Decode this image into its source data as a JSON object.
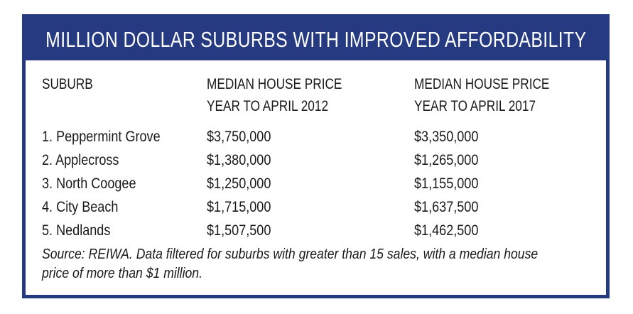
{
  "title": "MILLION DOLLAR SUBURBS WITH IMPROVED AFFORDABILITY",
  "colors": {
    "frame": "#253a80",
    "title_text": "#ffffff",
    "body_text": "#1a1a1a"
  },
  "headers": {
    "suburb": "SUBURB",
    "price_2012": [
      "MEDIAN HOUSE PRICE",
      "YEAR TO APRIL 2012"
    ],
    "price_2017": [
      "MEDIAN HOUSE PRICE",
      "YEAR TO APRIL 2017"
    ]
  },
  "rows": [
    {
      "suburb": "1. Peppermint Grove",
      "price_2012": "$3,750,000",
      "price_2017": "$3,350,000"
    },
    {
      "suburb": "2. Applecross",
      "price_2012": "$1,380,000",
      "price_2017": "$1,265,000"
    },
    {
      "suburb": "3. North Coogee",
      "price_2012": "$1,250,000",
      "price_2017": "$1,155,000"
    },
    {
      "suburb": "4. City Beach",
      "price_2012": "$1,715,000",
      "price_2017": "$1,637,500"
    },
    {
      "suburb": "5. Nedlands",
      "price_2012": "$1,507,500",
      "price_2017": "$1,462,500"
    }
  ],
  "source": [
    "Source: REIWA. Data filtered for suburbs with greater than 15 sales, with a median house",
    "price of more than $1 million."
  ]
}
